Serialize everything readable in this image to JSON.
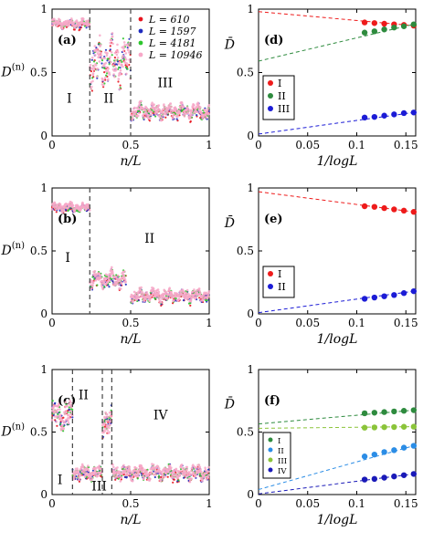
{
  "colors": {
    "L610": "#e8141e",
    "L1597": "#1f2bbf",
    "L4181": "#2dc52d",
    "L10946": "#f7a8c8",
    "I_red": "#ee1b1b",
    "I_green": "#2e8b3e",
    "II_green": "#2e8b3e",
    "II_blue": "#1c1cd6",
    "III_blue": "#1c1cd6",
    "f_I": "#2e8b3e",
    "f_II": "#2b8de6",
    "f_III": "#8bc43a",
    "f_IV": "#1a1ab8"
  },
  "chart_data": [
    {
      "panel": "(a)",
      "type": "scatter",
      "xlabel": "n/L",
      "ylabel": "D^(n)",
      "xlim": [
        0,
        1
      ],
      "ylim": [
        0,
        1
      ],
      "xticks": [
        "0",
        "0.5",
        "1"
      ],
      "yticks": [
        "0",
        "0.5",
        "1"
      ],
      "legend": [
        "L = 610",
        "L = 1597",
        "L = 4181",
        "L = 10946"
      ],
      "dividers": [
        0.24,
        0.5
      ],
      "regions": [
        {
          "label": "I",
          "x": 0.11,
          "y": 0.3
        },
        {
          "label": "II",
          "x": 0.36,
          "y": 0.3
        },
        {
          "label": "III",
          "x": 0.72,
          "y": 0.42
        }
      ],
      "segments": [
        {
          "x0": 0.0,
          "x1": 0.24,
          "level": 0.88,
          "amp": 0.04
        },
        {
          "x0": 0.24,
          "x1": 0.5,
          "level": 0.58,
          "amp": 0.22
        },
        {
          "x0": 0.5,
          "x1": 1.0,
          "level": 0.19,
          "amp": 0.07
        }
      ]
    },
    {
      "panel": "(d)",
      "type": "scatter",
      "xlabel": "1/logL",
      "ylabel": "D̄",
      "xlim": [
        0,
        0.16
      ],
      "ylim": [
        0,
        1
      ],
      "xticks": [
        "0",
        "0.05",
        "0.1",
        "0.15"
      ],
      "yticks": [
        "0",
        "0.5",
        "1"
      ],
      "x": [
        0.108,
        0.118,
        0.128,
        0.138,
        0.148,
        0.158
      ],
      "series": [
        {
          "name": "I",
          "values": [
            0.895,
            0.89,
            0.885,
            0.88,
            0.875,
            0.87
          ],
          "fit": [
            0.98,
            0.87
          ]
        },
        {
          "name": "II",
          "values": [
            0.815,
            0.825,
            0.84,
            0.855,
            0.865,
            0.88
          ],
          "fit": [
            0.59,
            0.88
          ]
        },
        {
          "name": "III",
          "values": [
            0.145,
            0.15,
            0.16,
            0.17,
            0.18,
            0.185
          ],
          "fit": [
            0.015,
            0.185
          ]
        }
      ],
      "legend": [
        "I",
        "II",
        "III"
      ]
    },
    {
      "panel": "(b)",
      "type": "scatter",
      "xlabel": "n/L",
      "ylabel": "D^(n)",
      "xlim": [
        0,
        1
      ],
      "ylim": [
        0,
        1
      ],
      "xticks": [
        "0",
        "0.5",
        "1"
      ],
      "yticks": [
        "0",
        "0.5",
        "1"
      ],
      "dividers": [
        0.24
      ],
      "regions": [
        {
          "label": "I",
          "x": 0.1,
          "y": 0.45
        },
        {
          "label": "II",
          "x": 0.62,
          "y": 0.6
        }
      ],
      "segments": [
        {
          "x0": 0.0,
          "x1": 0.24,
          "level": 0.84,
          "amp": 0.04
        },
        {
          "x0": 0.24,
          "x1": 0.47,
          "level": 0.27,
          "amp": 0.08
        },
        {
          "x0": 0.5,
          "x1": 1.0,
          "level": 0.14,
          "amp": 0.06
        }
      ]
    },
    {
      "panel": "(e)",
      "type": "scatter",
      "xlabel": "1/logL",
      "ylabel": "D̄",
      "xlim": [
        0,
        0.16
      ],
      "ylim": [
        0,
        1
      ],
      "xticks": [
        "0",
        "0.05",
        "0.1",
        "0.15"
      ],
      "yticks": [
        "0",
        "0.5",
        "1"
      ],
      "x": [
        0.108,
        0.118,
        0.128,
        0.138,
        0.148,
        0.158
      ],
      "series": [
        {
          "name": "I",
          "values": [
            0.855,
            0.85,
            0.84,
            0.83,
            0.82,
            0.81
          ],
          "fit": [
            0.97,
            0.81
          ]
        },
        {
          "name": "II",
          "values": [
            0.12,
            0.13,
            0.14,
            0.15,
            0.165,
            0.18
          ],
          "fit": [
            0.01,
            0.18
          ]
        }
      ],
      "legend": [
        "I",
        "II"
      ]
    },
    {
      "panel": "(c)",
      "type": "scatter",
      "xlabel": "n/L",
      "ylabel": "D^(n)",
      "xlim": [
        0,
        1
      ],
      "ylim": [
        0,
        1
      ],
      "xticks": [
        "0",
        "0.5",
        "1"
      ],
      "yticks": [
        "0",
        "0.5",
        "1"
      ],
      "dividers": [
        0.13,
        0.32,
        0.38
      ],
      "regions": [
        {
          "label": "I",
          "x": 0.05,
          "y": 0.12
        },
        {
          "label": "II",
          "x": 0.2,
          "y": 0.8
        },
        {
          "label": "III",
          "x": 0.3,
          "y": 0.07
        },
        {
          "label": "IV",
          "x": 0.69,
          "y": 0.64
        }
      ],
      "segments": [
        {
          "x0": 0.0,
          "x1": 0.13,
          "level": 0.63,
          "amp": 0.14
        },
        {
          "x0": 0.13,
          "x1": 0.32,
          "level": 0.17,
          "amp": 0.07
        },
        {
          "x0": 0.32,
          "x1": 0.38,
          "level": 0.58,
          "amp": 0.13
        },
        {
          "x0": 0.38,
          "x1": 1.0,
          "level": 0.17,
          "amp": 0.07
        }
      ]
    },
    {
      "panel": "(f)",
      "type": "scatter",
      "xlabel": "1/logL",
      "ylabel": "D̄",
      "xlim": [
        0,
        0.16
      ],
      "ylim": [
        0,
        1
      ],
      "xticks": [
        "0",
        "0.05",
        "0.1",
        "0.15"
      ],
      "yticks": [
        "0",
        "0.5",
        "1"
      ],
      "x": [
        0.108,
        0.118,
        0.128,
        0.138,
        0.148,
        0.158
      ],
      "series": [
        {
          "name": "I",
          "values": [
            0.65,
            0.655,
            0.66,
            0.665,
            0.67,
            0.675
          ],
          "fit": [
            0.565,
            0.675
          ]
        },
        {
          "name": "II",
          "values": [
            0.305,
            0.32,
            0.34,
            0.355,
            0.375,
            0.39
          ],
          "fit": [
            0.04,
            0.39
          ]
        },
        {
          "name": "III",
          "values": [
            0.535,
            0.537,
            0.539,
            0.54,
            0.542,
            0.543
          ],
          "fit": [
            0.53,
            0.543
          ]
        },
        {
          "name": "IV",
          "values": [
            0.12,
            0.125,
            0.135,
            0.145,
            0.155,
            0.165
          ],
          "fit": [
            0.005,
            0.165
          ]
        }
      ],
      "legend": [
        "I",
        "II",
        "III",
        "IV"
      ]
    }
  ]
}
